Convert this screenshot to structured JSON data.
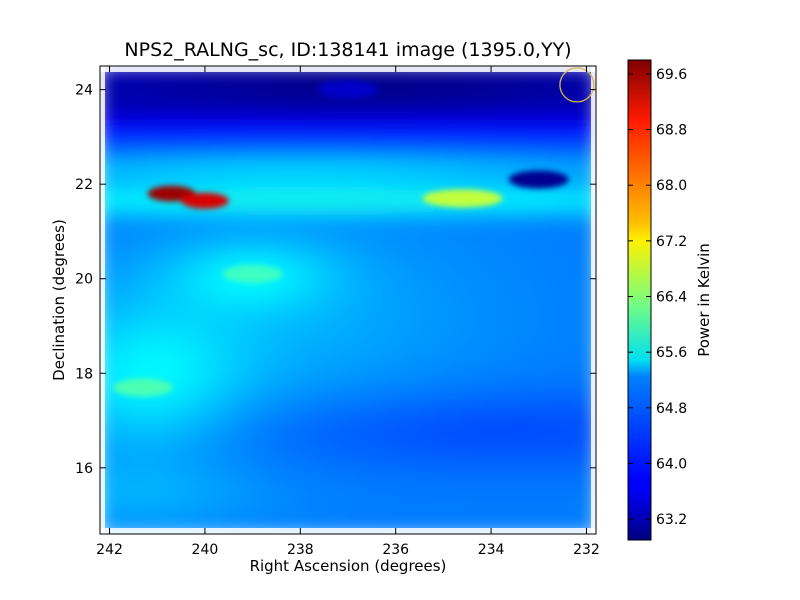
{
  "chart_data": {
    "type": "heatmap",
    "title": "NPS2_RALNG_sc, ID:138141 image (1395.0,YY)",
    "xlabel": "Right Ascension (degrees)",
    "ylabel": "Declination (degrees)",
    "xlim": [
      242.2,
      231.8
    ],
    "ylim": [
      14.6,
      24.5
    ],
    "x_axis_inverted": true,
    "x_ticks": [
      242,
      240,
      238,
      236,
      234,
      232
    ],
    "x_tick_labels": [
      "242",
      "240",
      "238",
      "236",
      "234",
      "232"
    ],
    "y_ticks": [
      16,
      18,
      20,
      22,
      24
    ],
    "y_tick_labels": [
      "16",
      "18",
      "20",
      "22",
      "24"
    ],
    "colormap": "jet",
    "colorbar": {
      "label": "Power in Kelvin",
      "vmin": 62.9,
      "vmax": 69.8,
      "ticks": [
        63.2,
        64.0,
        64.8,
        65.6,
        66.4,
        67.2,
        68.0,
        68.8,
        69.6
      ],
      "tick_labels": [
        "63.2",
        "64.0",
        "64.8",
        "65.6",
        "66.4",
        "67.2",
        "68.0",
        "68.8",
        "69.6"
      ]
    },
    "features": [
      {
        "ra": 240.7,
        "dec": 21.8,
        "value": 69.6
      },
      {
        "ra": 240.0,
        "dec": 21.65,
        "value": 69.2
      },
      {
        "ra": 234.6,
        "dec": 21.7,
        "value": 66.8
      },
      {
        "ra": 233.0,
        "dec": 22.1,
        "value": 63.0
      },
      {
        "ra": 239.0,
        "dec": 20.1,
        "value": 65.9
      },
      {
        "ra": 241.3,
        "dec": 17.7,
        "value": 66.0
      },
      {
        "ra": 237.0,
        "dec": 24.0,
        "value": 63.4
      }
    ],
    "beam_marker": {
      "ra": 232.2,
      "dec": 24.1,
      "color": "#d4b84a"
    }
  }
}
